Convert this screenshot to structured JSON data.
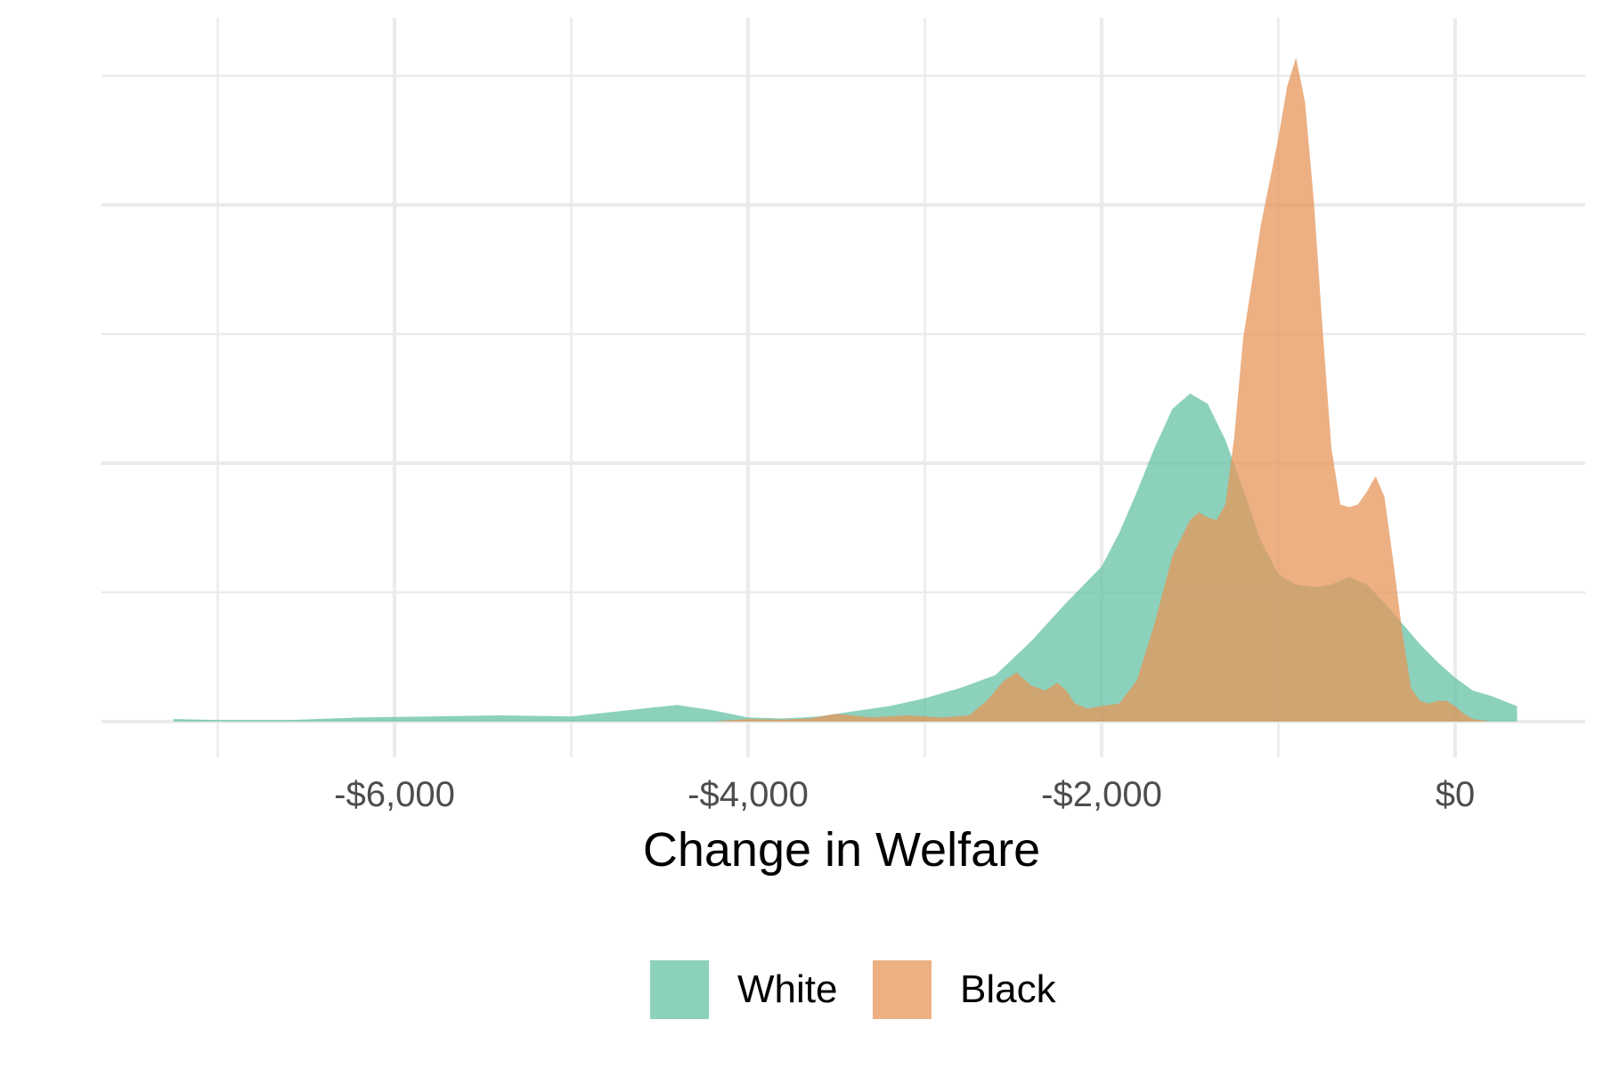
{
  "chart_data": {
    "type": "area",
    "subtype": "density",
    "title": "",
    "xlabel": "Change in Welfare",
    "ylabel": "",
    "xlim": [
      -7300,
      400
    ],
    "ylim": [
      0,
      0.00125
    ],
    "x_ticks": [
      {
        "value": -6000,
        "label": "-$6,000"
      },
      {
        "value": -4000,
        "label": "-$4,000"
      },
      {
        "value": -2000,
        "label": "-$2,000"
      },
      {
        "value": 0,
        "label": "$0"
      }
    ],
    "grid": true,
    "legend_position": "bottom",
    "fill_opacity": 0.75,
    "series": [
      {
        "name": "White",
        "color": "#66C2A5",
        "x": [
          -7250,
          -7000,
          -6600,
          -6200,
          -5800,
          -5400,
          -5000,
          -4600,
          -4400,
          -4200,
          -4000,
          -3800,
          -3600,
          -3400,
          -3200,
          -3000,
          -2800,
          -2600,
          -2400,
          -2200,
          -2000,
          -1900,
          -1800,
          -1700,
          -1600,
          -1500,
          -1400,
          -1300,
          -1200,
          -1100,
          -1000,
          -900,
          -800,
          -700,
          -600,
          -500,
          -400,
          -300,
          -200,
          -100,
          0,
          100,
          200,
          350
        ],
        "y": [
          5e-06,
          3e-06,
          3e-06,
          8e-06,
          1e-05,
          1.2e-05,
          1e-05,
          2.5e-05,
          3.2e-05,
          2.2e-05,
          8e-06,
          6e-06,
          1e-05,
          2e-05,
          3e-05,
          4.5e-05,
          6.5e-05,
          9e-05,
          0.000155,
          0.00023,
          0.0003,
          0.000365,
          0.000445,
          0.00053,
          0.000605,
          0.000635,
          0.000615,
          0.000545,
          0.00045,
          0.00035,
          0.000285,
          0.000265,
          0.00026,
          0.000265,
          0.00028,
          0.000265,
          0.00023,
          0.00019,
          0.00015,
          0.000115,
          8.5e-05,
          6e-05,
          5e-05,
          3e-05
        ]
      },
      {
        "name": "Black",
        "color": "#E6955A",
        "x": [
          -4400,
          -4200,
          -4000,
          -3800,
          -3650,
          -3500,
          -3300,
          -3100,
          -2900,
          -2750,
          -2650,
          -2550,
          -2480,
          -2400,
          -2320,
          -2250,
          -2200,
          -2150,
          -2080,
          -2000,
          -1900,
          -1800,
          -1700,
          -1600,
          -1500,
          -1450,
          -1400,
          -1350,
          -1300,
          -1250,
          -1200,
          -1100,
          -1000,
          -950,
          -900,
          -850,
          -800,
          -750,
          -700,
          -650,
          -600,
          -550,
          -500,
          -450,
          -400,
          -350,
          -300,
          -250,
          -200,
          -150,
          -100,
          -50,
          0,
          50,
          100,
          200
        ],
        "y": [
          0.0,
          0.0,
          5e-06,
          4e-06,
          6e-06,
          1.5e-05,
          8e-06,
          1.2e-05,
          8e-06,
          1.2e-05,
          4e-05,
          8e-05,
          9.5e-05,
          7e-05,
          6e-05,
          7.5e-05,
          6e-05,
          3.5e-05,
          2.5e-05,
          3e-05,
          3.5e-05,
          8e-05,
          0.00019,
          0.00032,
          0.00039,
          0.000405,
          0.000395,
          0.00039,
          0.00042,
          0.00055,
          0.00074,
          0.00096,
          0.00113,
          0.00123,
          0.001285,
          0.0012,
          0.00101,
          0.00076,
          0.00053,
          0.00042,
          0.000415,
          0.00042,
          0.000445,
          0.000475,
          0.000435,
          0.00031,
          0.000175,
          6.5e-05,
          4e-05,
          3.5e-05,
          4e-05,
          4e-05,
          3e-05,
          1.5e-05,
          5e-06,
          0.0
        ]
      }
    ]
  },
  "legend": {
    "items": [
      {
        "label": "White",
        "color": "#66C2A5"
      },
      {
        "label": "Black",
        "color": "#E6955A"
      }
    ]
  }
}
